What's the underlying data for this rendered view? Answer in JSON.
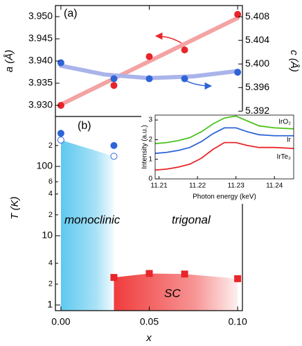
{
  "chart_data": [
    {
      "type": "scatter",
      "label": "(a)",
      "ylabel": "a (Å)",
      "y2label": "c (Å)",
      "xlim": [
        -0.0031,
        0.1027
      ],
      "ylim": [
        3.9275,
        3.9525
      ],
      "yticks": [
        {
          "value": 3.93,
          "label": "3.930"
        },
        3.935,
        {
          "value": 3.94,
          "label": "3.940"
        },
        3.945,
        {
          "value": 3.95,
          "label": "3.950"
        }
      ],
      "y2lim": [
        5.3911,
        5.4099
      ],
      "y2ticks": [
        5.392,
        5.396,
        {
          "value": 5.4,
          "label": "5.400"
        },
        5.404,
        5.408
      ],
      "series": [
        {
          "color": "#e8252a",
          "x": [
            0,
            0.03,
            0.05,
            0.07,
            0.1
          ],
          "values": [
            3.93,
            3.9345,
            3.941,
            3.9425,
            3.9505
          ]
        },
        {
          "color": "#2e64d8",
          "axis": "y2",
          "x": [
            0,
            0.03,
            0.05,
            0.07,
            0.1
          ],
          "values": [
            5.4002,
            5.3975,
            5.3975,
            5.3975,
            5.3986
          ]
        }
      ],
      "fits": [
        {
          "color": "#f4a3a3",
          "x": [
            0,
            0.1
          ],
          "values": [
            3.9302,
            3.9497
          ]
        },
        {
          "color": "#a9b4ea",
          "axis": "y2",
          "x": [
            0,
            0.025,
            0.05,
            0.075,
            0.1
          ],
          "values": [
            5.3997,
            5.3982,
            5.3976,
            5.3979,
            5.3988
          ]
        }
      ]
    },
    {
      "type": "scatter",
      "label": "(b)",
      "ylabel": "T (K)",
      "xlabel": "x",
      "log": true,
      "xlim": [
        -0.0031,
        0.1027
      ],
      "xticks": [
        {
          "value": 0,
          "label": "0.00"
        },
        0.05,
        {
          "value": 0.1,
          "label": "0.10"
        }
      ],
      "ylim": [
        0.83,
        525
      ],
      "yticks": [
        1,
        2,
        4,
        10,
        {
          "value": 20,
          "label": "2"
        },
        {
          "value": 40,
          "label": "4"
        },
        {
          "value": 60,
          "label": "6"
        },
        100,
        {
          "value": 200,
          "label": "2"
        }
      ],
      "series": [
        {
          "color": "#2e64d8",
          "marker": "circle",
          "x": [
            0,
            0.03
          ],
          "values": [
            300,
            200
          ]
        },
        {
          "color": "#2e64d8",
          "marker": "open",
          "area_color": "#5ec8ef",
          "x": [
            0,
            0.03
          ],
          "values": [
            240,
            140
          ]
        },
        {
          "color": "#e8252a",
          "marker": "square",
          "area_color": "#f03c3c",
          "x": [
            0.03,
            0.05,
            0.07,
            0.1
          ],
          "values": [
            2.5,
            2.85,
            2.8,
            2.4
          ]
        }
      ],
      "annotations": [
        "monoclinic",
        "trigonal",
        "SC"
      ]
    },
    {
      "type": "line",
      "xlabel": "Photon energy (keV)",
      "ylabel": "Intensity (a.u.)",
      "x": [
        11.209,
        11.212,
        11.215,
        11.218,
        11.221,
        11.224,
        11.227,
        11.23,
        11.233,
        11.236,
        11.24,
        11.245
      ],
      "xlim": [
        11.209,
        11.245
      ],
      "xticks": [
        11.21,
        11.22,
        11.23,
        11.24
      ],
      "ylim": [
        0,
        3.25
      ],
      "yticks": [
        0,
        1,
        2,
        3
      ],
      "series": [
        {
          "name": "IrO₂",
          "color": "#4cc21f",
          "values": [
            1.8,
            1.85,
            1.95,
            2.1,
            2.4,
            2.8,
            3.1,
            3.2,
            2.95,
            2.7,
            2.6,
            2.55
          ]
        },
        {
          "name": "Ir",
          "color": "#2e64d8",
          "values": [
            1.3,
            1.35,
            1.45,
            1.6,
            1.9,
            2.3,
            2.6,
            2.6,
            2.4,
            2.25,
            2.2,
            2.2
          ]
        },
        {
          "name": "IrTe₂",
          "color": "#e8252a",
          "values": [
            0.45,
            0.5,
            0.6,
            0.75,
            1.05,
            1.5,
            1.85,
            1.85,
            1.7,
            1.6,
            1.6,
            1.55
          ]
        }
      ]
    }
  ]
}
